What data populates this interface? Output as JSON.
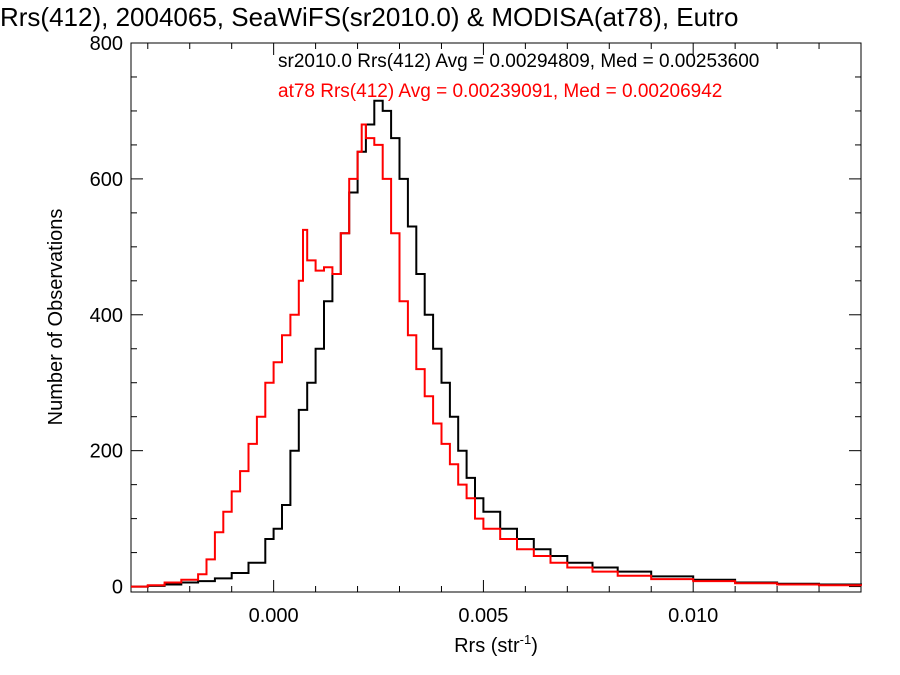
{
  "chart_data": {
    "type": "line",
    "title": "Rrs(412), 2004065, SeaWiFS(sr2010.0) & MODISA(at78), Eutro",
    "xlabel": "Rrs (str",
    "xlabel_sup": "-1",
    "xlabel_close": ")",
    "ylabel": "Number of Observations",
    "xlim": [
      -0.0034,
      0.014
    ],
    "ylim": [
      -8,
      800
    ],
    "xticks": [
      0.0,
      0.005,
      0.01
    ],
    "xtick_labels": [
      "0.000",
      "0.005",
      "0.010"
    ],
    "yticks": [
      0,
      200,
      400,
      600,
      800
    ],
    "ytick_labels": [
      "0",
      "200",
      "400",
      "600",
      "800"
    ],
    "grid": false,
    "legend_placement": "top",
    "annotations": [
      {
        "text": "sr2010.0 Rrs(412) Avg = 0.00294809, Med = 0.00253600",
        "color": "#000000"
      },
      {
        "text": "at78 Rrs(412) Avg = 0.00239091, Med = 0.00206942",
        "color": "#ff0000"
      }
    ],
    "series": [
      {
        "color": "#000000",
        "points": [
          [
            -0.0034,
            0
          ],
          [
            -0.003,
            1
          ],
          [
            -0.0026,
            3
          ],
          [
            -0.0022,
            6
          ],
          [
            -0.0018,
            8
          ],
          [
            -0.0014,
            12
          ],
          [
            -0.001,
            20
          ],
          [
            -0.0006,
            35
          ],
          [
            -0.0002,
            70
          ],
          [
            0.0,
            85
          ],
          [
            0.0002,
            120
          ],
          [
            0.0004,
            200
          ],
          [
            0.0006,
            260
          ],
          [
            0.0008,
            300
          ],
          [
            0.001,
            350
          ],
          [
            0.0012,
            420
          ],
          [
            0.0014,
            460
          ],
          [
            0.0016,
            520
          ],
          [
            0.0018,
            580
          ],
          [
            0.002,
            640
          ],
          [
            0.0022,
            680
          ],
          [
            0.0024,
            715
          ],
          [
            0.0026,
            700
          ],
          [
            0.0028,
            660
          ],
          [
            0.003,
            600
          ],
          [
            0.0032,
            530
          ],
          [
            0.0034,
            460
          ],
          [
            0.0036,
            400
          ],
          [
            0.0038,
            350
          ],
          [
            0.004,
            300
          ],
          [
            0.0042,
            250
          ],
          [
            0.0044,
            200
          ],
          [
            0.0046,
            160
          ],
          [
            0.0048,
            130
          ],
          [
            0.005,
            110
          ],
          [
            0.0054,
            85
          ],
          [
            0.0058,
            70
          ],
          [
            0.0062,
            55
          ],
          [
            0.0066,
            45
          ],
          [
            0.007,
            35
          ],
          [
            0.0076,
            28
          ],
          [
            0.0082,
            22
          ],
          [
            0.009,
            15
          ],
          [
            0.01,
            10
          ],
          [
            0.011,
            6
          ],
          [
            0.012,
            4
          ],
          [
            0.013,
            3
          ],
          [
            0.014,
            2
          ]
        ]
      },
      {
        "color": "#ff0000",
        "points": [
          [
            -0.0034,
            0
          ],
          [
            -0.003,
            2
          ],
          [
            -0.0026,
            6
          ],
          [
            -0.0022,
            10
          ],
          [
            -0.0018,
            18
          ],
          [
            -0.0016,
            40
          ],
          [
            -0.0014,
            80
          ],
          [
            -0.0012,
            110
          ],
          [
            -0.001,
            140
          ],
          [
            -0.0008,
            170
          ],
          [
            -0.0006,
            210
          ],
          [
            -0.0004,
            250
          ],
          [
            -0.0002,
            300
          ],
          [
            0.0,
            330
          ],
          [
            0.0002,
            370
          ],
          [
            0.0004,
            400
          ],
          [
            0.0006,
            450
          ],
          [
            0.0007,
            525
          ],
          [
            0.0008,
            480
          ],
          [
            0.001,
            465
          ],
          [
            0.0012,
            470
          ],
          [
            0.0014,
            460
          ],
          [
            0.0016,
            520
          ],
          [
            0.0018,
            600
          ],
          [
            0.002,
            640
          ],
          [
            0.0021,
            680
          ],
          [
            0.0022,
            660
          ],
          [
            0.0024,
            650
          ],
          [
            0.0026,
            600
          ],
          [
            0.0028,
            520
          ],
          [
            0.003,
            420
          ],
          [
            0.0032,
            370
          ],
          [
            0.0034,
            320
          ],
          [
            0.0036,
            280
          ],
          [
            0.0038,
            240
          ],
          [
            0.004,
            210
          ],
          [
            0.0042,
            180
          ],
          [
            0.0044,
            150
          ],
          [
            0.0046,
            130
          ],
          [
            0.0048,
            100
          ],
          [
            0.005,
            85
          ],
          [
            0.0054,
            70
          ],
          [
            0.0058,
            55
          ],
          [
            0.0062,
            45
          ],
          [
            0.0066,
            35
          ],
          [
            0.007,
            28
          ],
          [
            0.0076,
            22
          ],
          [
            0.0082,
            16
          ],
          [
            0.009,
            11
          ],
          [
            0.01,
            8
          ],
          [
            0.011,
            5
          ],
          [
            0.012,
            3
          ],
          [
            0.013,
            2
          ],
          [
            0.014,
            1
          ]
        ]
      }
    ]
  }
}
